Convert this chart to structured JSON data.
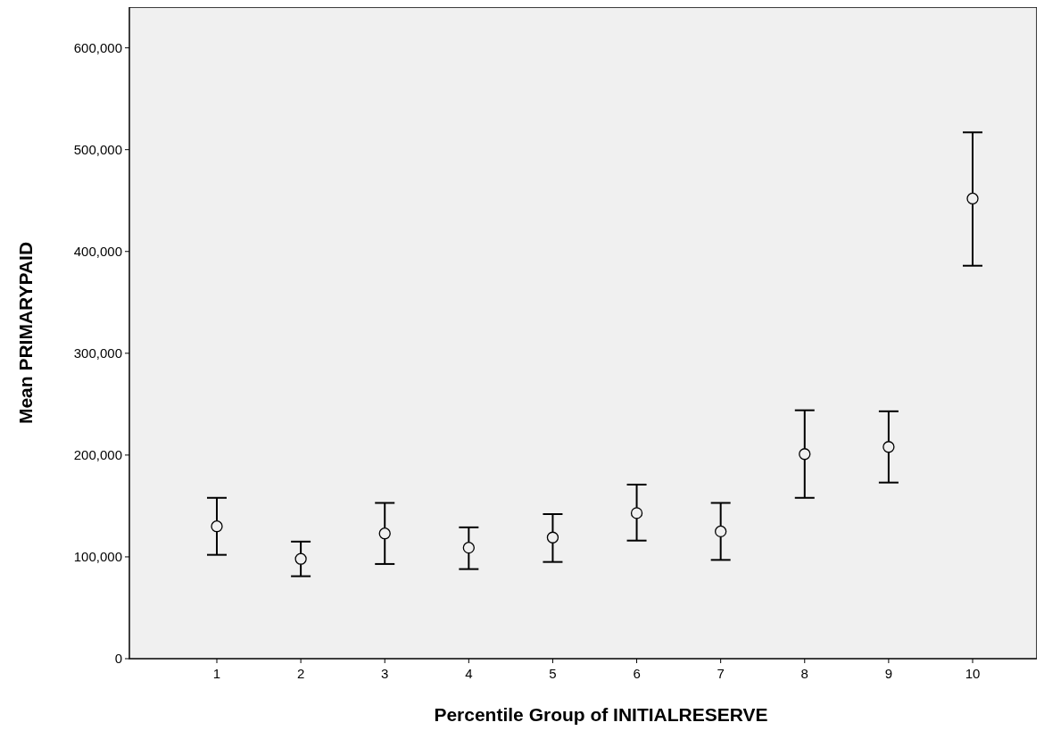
{
  "chart_data": {
    "type": "scatter",
    "xlabel": "Percentile Group of INITIALRESERVE",
    "ylabel": "Mean PRIMARYPAID",
    "categories": [
      "1",
      "2",
      "3",
      "4",
      "5",
      "6",
      "7",
      "8",
      "9",
      "10"
    ],
    "values": [
      130000,
      98000,
      123000,
      109000,
      119000,
      143000,
      125000,
      201000,
      208000,
      452000
    ],
    "errors": [
      [
        102000,
        158000
      ],
      [
        81000,
        115000
      ],
      [
        93000,
        153000
      ],
      [
        88000,
        129000
      ],
      [
        95000,
        142000
      ],
      [
        116000,
        171000
      ],
      [
        97000,
        153000
      ],
      [
        158000,
        244000
      ],
      [
        173000,
        243000
      ],
      [
        386000,
        517000
      ]
    ],
    "color": "#000000",
    "marker": "circle",
    "grid": false,
    "ylim": [
      0,
      640000
    ],
    "yticks": [
      {
        "value": 0,
        "label": "0"
      },
      {
        "value": 100000,
        "label": "100,000"
      },
      {
        "value": 200000,
        "label": "200,000"
      },
      {
        "value": 300000,
        "label": "300,000"
      },
      {
        "value": 400000,
        "label": "400,000"
      },
      {
        "value": 500000,
        "label": "500,000"
      },
      {
        "value": 600000,
        "label": "600,000"
      }
    ]
  }
}
